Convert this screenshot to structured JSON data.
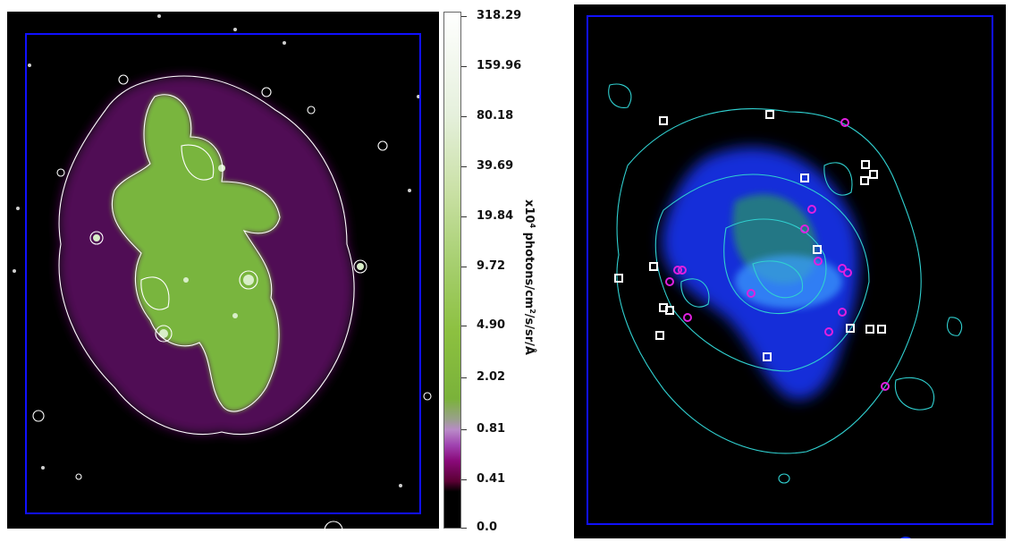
{
  "colorbar": {
    "ticks": [
      "318.29",
      "159.96",
      "80.18",
      "39.69",
      "19.84",
      "9.72",
      "4.90",
      "2.02",
      "0.81",
      "0.41",
      "0.0"
    ],
    "label_prefix": "x10",
    "label_exp1": "4",
    "label_mid": " photons/cm",
    "label_exp2": "2",
    "label_suffix": "/s/sr/Å"
  },
  "colors": {
    "frame": "#1010ff",
    "left_contour": "#ffffff",
    "left_glow": "#7cbf3c",
    "left_halo": "#7a1a7a",
    "right_contour": "#30d0d0",
    "right_blue": "#1a35ff",
    "right_green": "#30c030",
    "square_marker": "#ffffff",
    "circle_marker": "#e020e0"
  }
}
